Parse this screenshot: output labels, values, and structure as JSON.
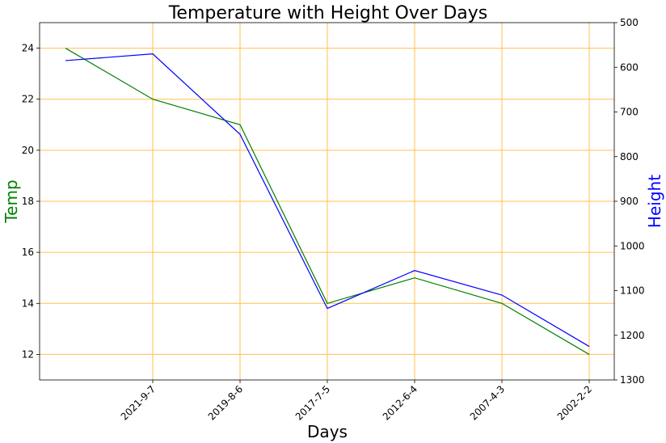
{
  "chart_data": {
    "type": "line",
    "title": "Temperature with Height Over Days",
    "xlabel": "Days",
    "ylabel": "Temp",
    "y2label": "Height",
    "categories": [
      "",
      "2021-9-7",
      "2019-8-6",
      "2017-7-5",
      "2012-6-4",
      "2007-4-3",
      "2002-2-2"
    ],
    "ylim": [
      11,
      25
    ],
    "y2lim": [
      500,
      1300
    ],
    "y2_inverted": true,
    "y_ticks": [
      12,
      14,
      16,
      18,
      20,
      22,
      24
    ],
    "y2_ticks": [
      500,
      600,
      700,
      800,
      900,
      1000,
      1100,
      1200,
      1300
    ],
    "grid": true,
    "grid_color": "#ffc04d",
    "series": [
      {
        "axis": "left",
        "color": "#008000",
        "values": [
          24,
          22,
          21,
          14,
          15,
          14,
          12
        ]
      },
      {
        "axis": "right",
        "color": "#0000ff",
        "values": [
          585,
          570,
          750,
          1140,
          1055,
          1110,
          1225
        ]
      }
    ],
    "ylabel_color": "#008000",
    "y2label_color": "#0000ff"
  }
}
